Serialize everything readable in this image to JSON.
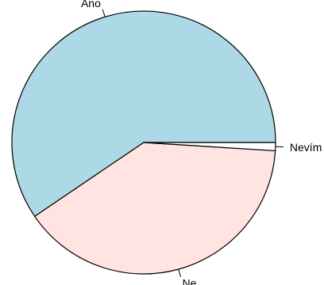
{
  "chart_data": {
    "type": "pie",
    "slices": [
      {
        "label": "Ano",
        "value": 59.5,
        "color": "#add8e6"
      },
      {
        "label": "Ne",
        "value": 39.5,
        "color": "#ffe4e1"
      },
      {
        "label": "Nevím",
        "value": 1.0,
        "color": "#ffffff"
      }
    ],
    "start_angle_deg": 0,
    "direction": "counterclockwise",
    "border_color": "#000000"
  }
}
